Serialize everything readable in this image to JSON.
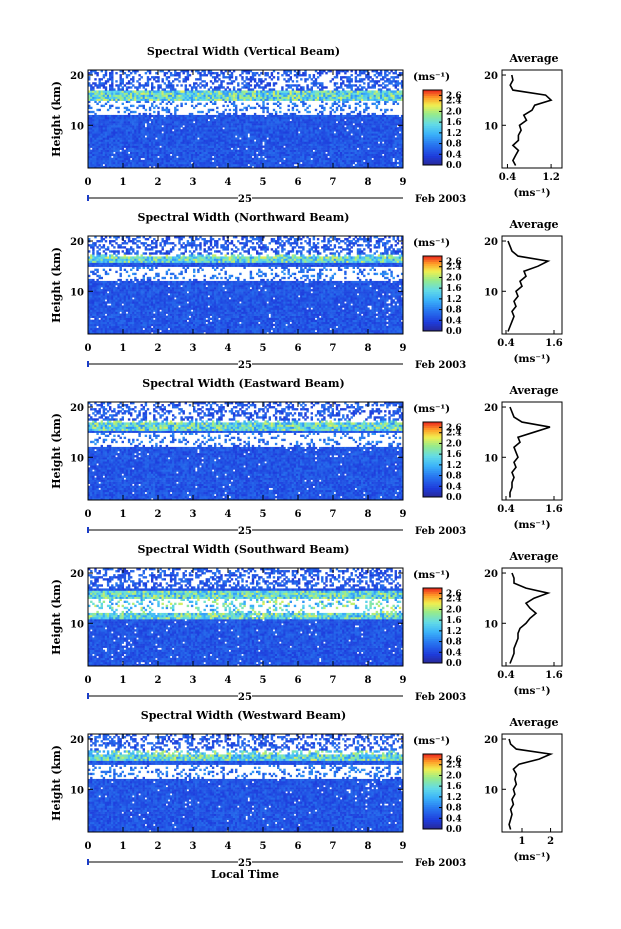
{
  "figure": {
    "xlabel": "Local Time",
    "date_day": "25",
    "date_month_year": "Feb 2003",
    "cbar_unit": "(ms⁻¹)",
    "avg_title": "Average",
    "avg_xlabel": "(ms⁻¹)",
    "ylabel": "Height (km)"
  },
  "chart_data": [
    {
      "type": "heatmap",
      "title": "Spectral Width (Vertical Beam)",
      "x_ticks": [
        "0",
        "1",
        "2",
        "3",
        "4",
        "5",
        "6",
        "7",
        "8",
        "9"
      ],
      "xlim": [
        0,
        9
      ],
      "y_ticks": [
        "10",
        "20"
      ],
      "ylim": [
        1.5,
        21
      ],
      "colorbar": {
        "ticks": [
          "2.6",
          "2.4",
          "2.0",
          "1.6",
          "1.2",
          "0.8",
          "0.4",
          "0.0"
        ],
        "range": [
          0.0,
          2.8
        ]
      },
      "average_profile": {
        "title": "Average",
        "x_ticks": [
          "0.4",
          "1.2"
        ],
        "xlim": [
          0.3,
          1.4
        ],
        "y_ticks": [
          "10",
          "20"
        ],
        "heights": [
          2,
          3,
          4,
          5,
          6,
          7,
          8,
          9,
          10,
          11,
          12,
          13,
          14,
          15,
          16,
          17,
          18,
          19,
          20
        ],
        "values": [
          0.55,
          0.5,
          0.55,
          0.6,
          0.5,
          0.6,
          0.6,
          0.65,
          0.62,
          0.75,
          0.7,
          0.85,
          0.9,
          1.2,
          1.1,
          0.5,
          0.45,
          0.5,
          0.48
        ]
      }
    },
    {
      "type": "heatmap",
      "title": "Spectral Width (Northward Beam)",
      "x_ticks": [
        "0",
        "1",
        "2",
        "3",
        "4",
        "5",
        "6",
        "7",
        "8",
        "9"
      ],
      "xlim": [
        0,
        9
      ],
      "y_ticks": [
        "10",
        "20"
      ],
      "ylim": [
        1.5,
        21
      ],
      "colorbar": {
        "ticks": [
          "2.6",
          "2.4",
          "2.0",
          "1.6",
          "1.2",
          "0.8",
          "0.4",
          "0.0"
        ],
        "range": [
          0.0,
          2.8
        ]
      },
      "average_profile": {
        "title": "Average",
        "x_ticks": [
          "0.4",
          "1.6"
        ],
        "xlim": [
          0.3,
          1.8
        ],
        "y_ticks": [
          "10",
          "20"
        ],
        "heights": [
          2,
          3,
          4,
          5,
          6,
          7,
          8,
          9,
          10,
          11,
          12,
          13,
          14,
          15,
          16,
          17,
          18,
          19,
          20
        ],
        "values": [
          0.45,
          0.5,
          0.55,
          0.6,
          0.55,
          0.65,
          0.6,
          0.7,
          0.65,
          0.8,
          0.75,
          0.9,
          0.85,
          1.2,
          1.45,
          0.7,
          0.55,
          0.5,
          0.45
        ]
      }
    },
    {
      "type": "heatmap",
      "title": "Spectral Width (Eastward Beam)",
      "x_ticks": [
        "0",
        "1",
        "2",
        "3",
        "4",
        "5",
        "6",
        "7",
        "8",
        "9"
      ],
      "xlim": [
        0,
        9
      ],
      "y_ticks": [
        "10",
        "20"
      ],
      "ylim": [
        1.5,
        21
      ],
      "colorbar": {
        "ticks": [
          "2.6",
          "2.4",
          "2.0",
          "1.6",
          "1.2",
          "0.8",
          "0.4",
          "0.0"
        ],
        "range": [
          0.0,
          2.8
        ]
      },
      "average_profile": {
        "title": "Average",
        "x_ticks": [
          "0.4",
          "1.6"
        ],
        "xlim": [
          0.3,
          1.8
        ],
        "y_ticks": [
          "10",
          "20"
        ],
        "heights": [
          2,
          3,
          4,
          5,
          6,
          7,
          8,
          9,
          10,
          11,
          12,
          13,
          14,
          15,
          16,
          17,
          18,
          19,
          20
        ],
        "values": [
          0.5,
          0.5,
          0.55,
          0.55,
          0.6,
          0.55,
          0.65,
          0.6,
          0.7,
          0.65,
          0.6,
          0.75,
          0.7,
          1.1,
          1.5,
          0.8,
          0.6,
          0.55,
          0.5
        ]
      }
    },
    {
      "type": "heatmap",
      "title": "Spectral Width (Southward Beam)",
      "x_ticks": [
        "0",
        "1",
        "2",
        "3",
        "4",
        "5",
        "6",
        "7",
        "8",
        "9"
      ],
      "xlim": [
        0,
        9
      ],
      "y_ticks": [
        "10",
        "20"
      ],
      "ylim": [
        1.5,
        21
      ],
      "colorbar": {
        "ticks": [
          "2.6",
          "2.4",
          "2.0",
          "1.6",
          "1.2",
          "0.8",
          "0.4",
          "0.0"
        ],
        "range": [
          0.0,
          2.8
        ]
      },
      "average_profile": {
        "title": "Average",
        "x_ticks": [
          "0.4",
          "1.6"
        ],
        "xlim": [
          0.3,
          1.8
        ],
        "y_ticks": [
          "10",
          "20"
        ],
        "heights": [
          2,
          3,
          4,
          5,
          6,
          7,
          8,
          9,
          10,
          11,
          12,
          13,
          14,
          15,
          16,
          17,
          18,
          19,
          20
        ],
        "values": [
          0.5,
          0.55,
          0.6,
          0.6,
          0.65,
          0.7,
          0.7,
          0.75,
          0.9,
          1.0,
          1.15,
          1.0,
          0.9,
          1.1,
          1.45,
          0.9,
          0.6,
          0.6,
          0.55
        ]
      }
    },
    {
      "type": "heatmap",
      "title": "Spectral Width (Westward Beam)",
      "x_ticks": [
        "0",
        "1",
        "2",
        "3",
        "4",
        "5",
        "6",
        "7",
        "8",
        "9"
      ],
      "xlim": [
        0,
        9
      ],
      "y_ticks": [
        "10",
        "20"
      ],
      "ylim": [
        1.5,
        21
      ],
      "colorbar": {
        "ticks": [
          "2.6",
          "2.4",
          "2.0",
          "1.6",
          "1.2",
          "0.8",
          "0.4",
          "0.0"
        ],
        "range": [
          0.0,
          2.8
        ]
      },
      "average_profile": {
        "title": "Average",
        "x_ticks": [
          "1",
          "2"
        ],
        "xlim": [
          0.3,
          2.4
        ],
        "y_ticks": [
          "10",
          "20"
        ],
        "heights": [
          2,
          3,
          4,
          5,
          6,
          7,
          8,
          9,
          10,
          11,
          12,
          13,
          14,
          15,
          16,
          17,
          18,
          19,
          20
        ],
        "values": [
          0.6,
          0.55,
          0.6,
          0.65,
          0.6,
          0.7,
          0.65,
          0.75,
          0.7,
          0.8,
          0.75,
          0.8,
          0.7,
          0.9,
          1.6,
          2.0,
          0.8,
          0.6,
          0.55
        ]
      }
    }
  ]
}
